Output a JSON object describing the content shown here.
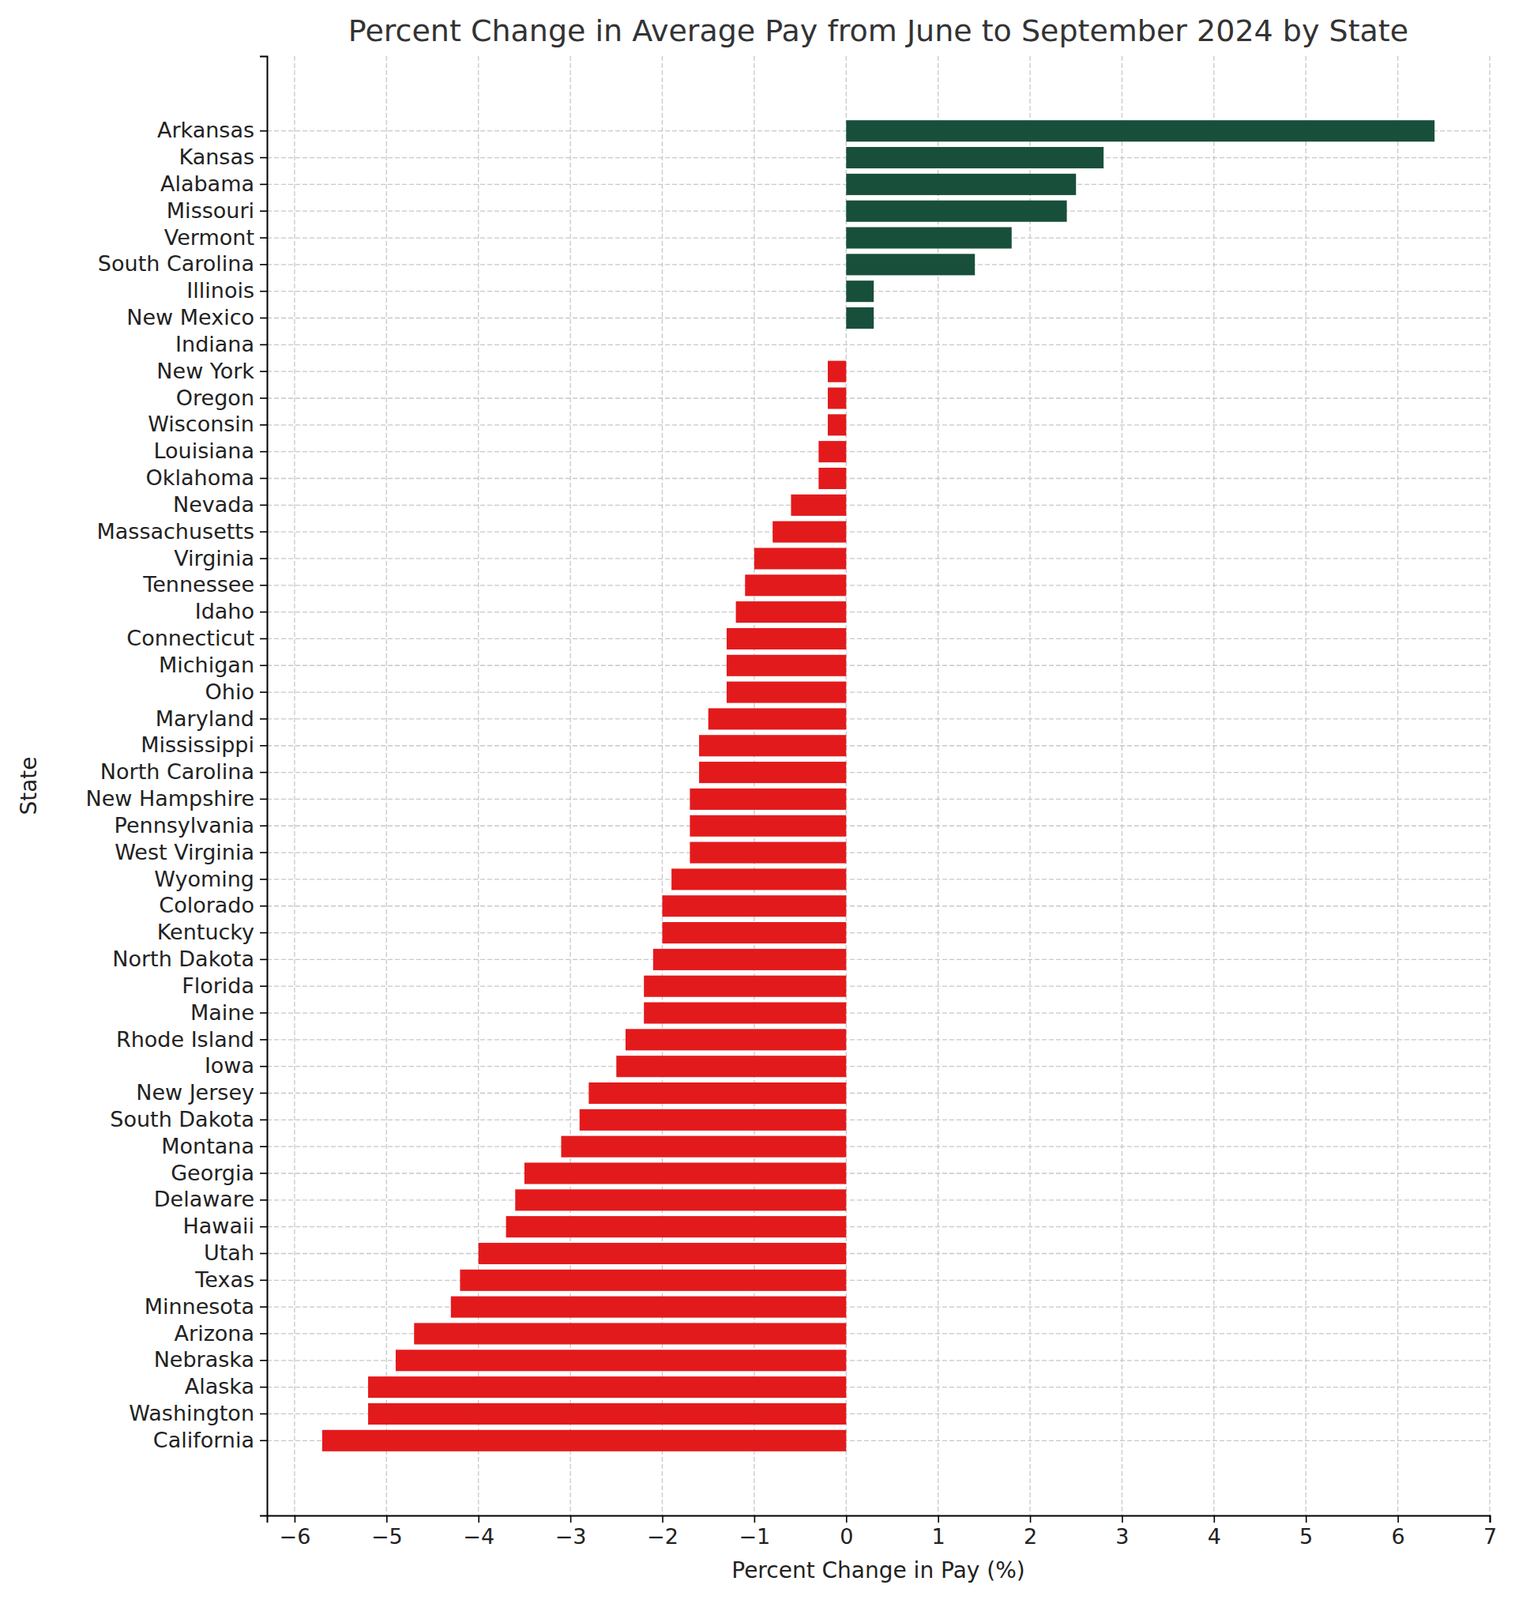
{
  "chart_data": {
    "type": "bar",
    "orientation": "horizontal",
    "title": "Percent Change in Average Pay from June to September 2024 by State",
    "xlabel": "Percent Change in Pay (%)",
    "ylabel": "State",
    "categories": [
      "Arkansas",
      "Kansas",
      "Alabama",
      "Missouri",
      "Vermont",
      "South Carolina",
      "Illinois",
      "New Mexico",
      "Indiana",
      "New York",
      "Oregon",
      "Wisconsin",
      "Louisiana",
      "Oklahoma",
      "Nevada",
      "Massachusetts",
      "Virginia",
      "Tennessee",
      "Idaho",
      "Connecticut",
      "Michigan",
      "Ohio",
      "Maryland",
      "Mississippi",
      "North Carolina",
      "New Hampshire",
      "Pennsylvania",
      "West Virginia",
      "Wyoming",
      "Colorado",
      "Kentucky",
      "North Dakota",
      "Florida",
      "Maine",
      "Rhode Island",
      "Iowa",
      "New Jersey",
      "South Dakota",
      "Montana",
      "Georgia",
      "Delaware",
      "Hawaii",
      "Utah",
      "Texas",
      "Minnesota",
      "Arizona",
      "Nebraska",
      "Alaska",
      "Washington",
      "California"
    ],
    "values": [
      6.4,
      2.8,
      2.5,
      2.4,
      1.8,
      1.4,
      0.3,
      0.3,
      0,
      -0.2,
      -0.2,
      -0.2,
      -0.3,
      -0.3,
      -0.6,
      -0.8,
      -1.0,
      -1.1,
      -1.2,
      -1.3,
      -1.3,
      -1.3,
      -1.5,
      -1.6,
      -1.6,
      -1.7,
      -1.7,
      -1.7,
      -1.9,
      -2.0,
      -2.0,
      -2.1,
      -2.2,
      -2.2,
      -2.4,
      -2.5,
      -2.8,
      -2.9,
      -3.1,
      -3.5,
      -3.6,
      -3.7,
      -4.0,
      -4.2,
      -4.3,
      -4.7,
      -4.9,
      -5.2,
      -5.2,
      -5.7
    ],
    "colors": [
      "#184f3b",
      "#184f3b",
      "#184f3b",
      "#184f3b",
      "#184f3b",
      "#184f3b",
      "#184f3b",
      "#184f3b",
      "#184f3b",
      "#e31a1c",
      "#e31a1c",
      "#e31a1c",
      "#e31a1c",
      "#e31a1c",
      "#e31a1c",
      "#e31a1c",
      "#e31a1c",
      "#e31a1c",
      "#e31a1c",
      "#e31a1c",
      "#e31a1c",
      "#e31a1c",
      "#e31a1c",
      "#e31a1c",
      "#e31a1c",
      "#e31a1c",
      "#e31a1c",
      "#e31a1c",
      "#e31a1c",
      "#e31a1c",
      "#e31a1c",
      "#e31a1c",
      "#e31a1c",
      "#e31a1c",
      "#e31a1c",
      "#e31a1c",
      "#e31a1c",
      "#e31a1c",
      "#e31a1c",
      "#e31a1c",
      "#e31a1c",
      "#e31a1c",
      "#e31a1c",
      "#e31a1c",
      "#e31a1c",
      "#e31a1c",
      "#e31a1c",
      "#e31a1c",
      "#e31a1c",
      "#e31a1c"
    ],
    "xlim": [
      -6.3,
      7
    ],
    "xticks": [
      {
        "value": -6,
        "label": "−6"
      },
      {
        "value": -5,
        "label": "−5"
      },
      {
        "value": -4,
        "label": "−4"
      },
      {
        "value": -3,
        "label": "−3"
      },
      {
        "value": -2,
        "label": "−2"
      },
      {
        "value": -1,
        "label": "−1"
      },
      0,
      1,
      2,
      3,
      4,
      5,
      6,
      7
    ],
    "grid": true
  }
}
